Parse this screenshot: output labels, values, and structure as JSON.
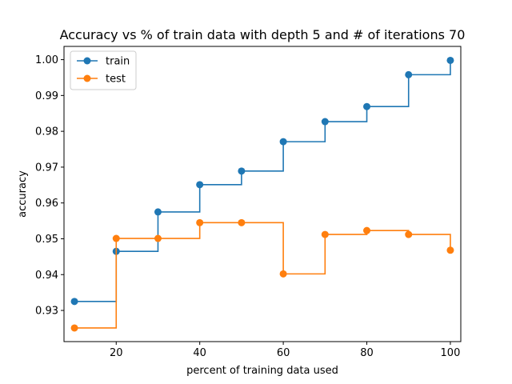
{
  "chart_data": {
    "type": "line",
    "step": "post",
    "title": "Accuracy vs % of train data with depth 5 and # of iterations 70",
    "xlabel": "percent of training data used",
    "ylabel": "accuracy",
    "xlim": [
      7.5,
      102.5
    ],
    "ylim": [
      0.9213,
      1.0037
    ],
    "xticks": [
      20,
      40,
      60,
      80,
      100
    ],
    "yticks": [
      0.93,
      0.94,
      0.95,
      0.96,
      0.97,
      0.98,
      0.99,
      1.0
    ],
    "grid": false,
    "legend_position": "top-left",
    "x": [
      10,
      20,
      30,
      40,
      50,
      60,
      70,
      80,
      90,
      100
    ],
    "series": [
      {
        "name": "train",
        "color": "#1f77b4",
        "values": [
          0.9325,
          0.9465,
          0.9575,
          0.9651,
          0.9689,
          0.9771,
          0.9827,
          0.9869,
          0.9958,
          0.9998
        ]
      },
      {
        "name": "test",
        "color": "#ff7f0e",
        "values": [
          0.9251,
          0.9501,
          0.9501,
          0.9545,
          0.9545,
          0.9402,
          0.9512,
          0.9523,
          0.9512,
          0.9468
        ]
      }
    ]
  }
}
